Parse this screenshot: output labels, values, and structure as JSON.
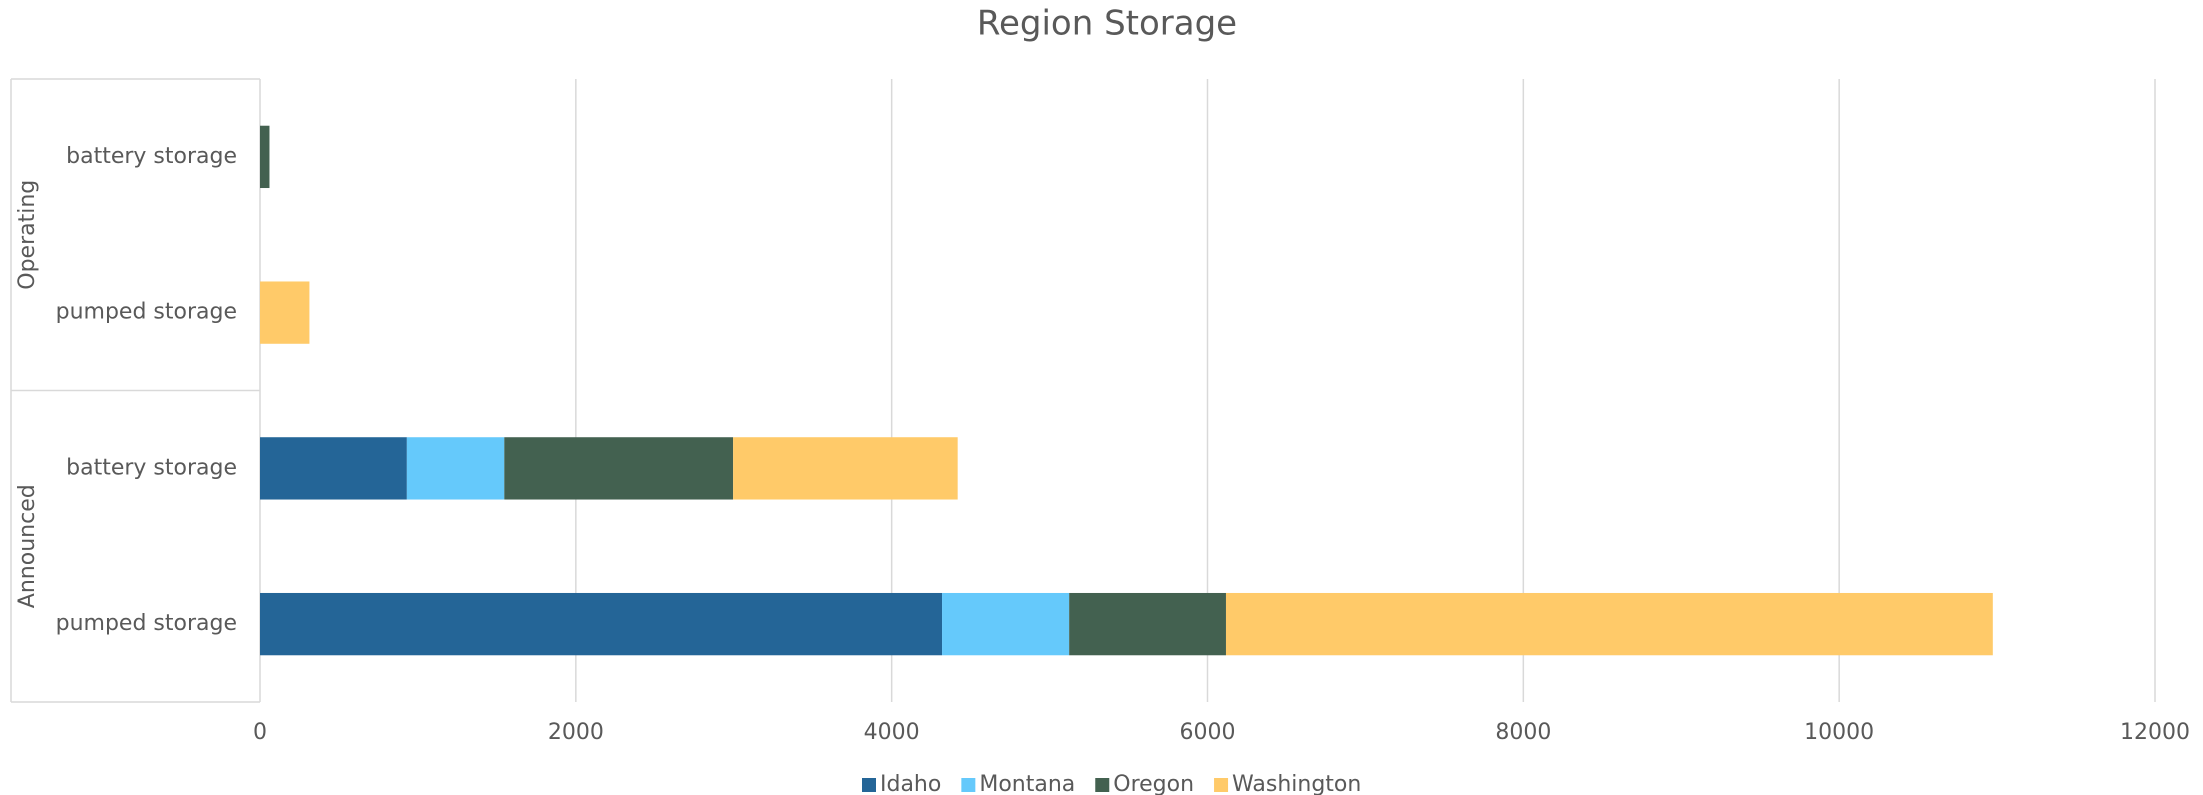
{
  "chart_data": {
    "type": "stacked_barh",
    "title": "Region Storage",
    "groups": [
      {
        "name": "Operating",
        "categories": [
          "battery storage",
          "pumped storage"
        ]
      },
      {
        "name": "Announced",
        "categories": [
          "battery storage",
          "pumped storage"
        ]
      }
    ],
    "series": [
      {
        "name": "Idaho",
        "color": "#246597",
        "values": [
          0,
          0,
          930,
          4319
        ]
      },
      {
        "name": "Montana",
        "color": "#65c9fb",
        "values": [
          0,
          0,
          617,
          805
        ]
      },
      {
        "name": "Oregon",
        "color": "#436150",
        "values": [
          60,
          0,
          1449,
          993
        ]
      },
      {
        "name": "Washington",
        "color": "#ffca69",
        "values": [
          0,
          313,
          1422,
          4856
        ]
      }
    ],
    "xlim": [
      0,
      12000
    ],
    "xticks": [
      0,
      2000,
      4000,
      6000,
      8000,
      10000,
      12000
    ],
    "grid": true,
    "legend": "bottom"
  }
}
